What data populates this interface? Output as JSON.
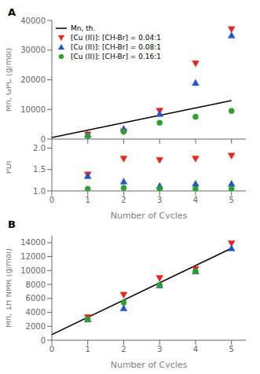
{
  "chart_data": [
    {
      "type": "scatter",
      "title": "A",
      "y_label": "Mn, GPC (g/mol)",
      "xlim": [
        0,
        5.4
      ],
      "xticks": [
        0,
        1,
        2,
        3,
        4,
        5
      ],
      "ylim": [
        0,
        40000
      ],
      "yticks": [
        0,
        10000,
        20000,
        30000,
        40000
      ],
      "tick_labels": "y",
      "legend": "upper left",
      "series": [
        {
          "name": "Mn, th.",
          "type": "line",
          "color": "#000000",
          "x": [
            0,
            5
          ],
          "values": [
            500,
            13000
          ]
        },
        {
          "name": "[Cu (II)]: [CH-Br] = 0.04:1",
          "type": "scatter",
          "marker": "triangle-down",
          "color": "#e8241a",
          "x": [
            1,
            2,
            3,
            4,
            5
          ],
          "values": [
            1500,
            2500,
            9500,
            25500,
            37000
          ]
        },
        {
          "name": "[Cu (II)]: [CH-Br] = 0.08:1",
          "type": "scatter",
          "marker": "triangle-up",
          "color": "#2255cc",
          "x": [
            1,
            2,
            3,
            4,
            5
          ],
          "values": [
            1500,
            3500,
            8500,
            19000,
            35000
          ]
        },
        {
          "name": "[Cu (II)]: [CH-Br] = 0.16:1",
          "type": "scatter",
          "marker": "circle",
          "color": "#2ca02c",
          "x": [
            1,
            2,
            3,
            4,
            5
          ],
          "values": [
            1000,
            2500,
            5500,
            7500,
            9500
          ]
        }
      ]
    },
    {
      "type": "scatter",
      "x_label": "Number of Cycles",
      "y_label": "PDI",
      "xlim": [
        0,
        5.4
      ],
      "xticks": [
        0,
        1,
        2,
        3,
        4,
        5
      ],
      "ylim": [
        1.0,
        2.1
      ],
      "yticks": [
        {
          "value": 1.0,
          "label": "1.0"
        },
        {
          "value": 1.5,
          "label": "1.5"
        },
        {
          "value": 2.0,
          "label": "2.0"
        }
      ],
      "series": [
        {
          "name": "[Cu (II)]: [CH-Br] = 0.04:1",
          "type": "scatter",
          "marker": "triangle-down",
          "color": "#e8241a",
          "x": [
            1,
            2,
            3,
            4,
            5
          ],
          "values": [
            1.38,
            1.75,
            1.72,
            1.75,
            1.82
          ]
        },
        {
          "name": "[Cu (II)]: [CH-Br] = 0.08:1",
          "type": "scatter",
          "marker": "triangle-up",
          "color": "#2255cc",
          "x": [
            1,
            2,
            3,
            4,
            5
          ],
          "values": [
            1.35,
            1.22,
            1.12,
            1.17,
            1.17
          ]
        },
        {
          "name": "[Cu (II)]: [CH-Br] = 0.16:1",
          "type": "scatter",
          "marker": "circle",
          "color": "#2ca02c",
          "x": [
            1,
            2,
            3,
            4,
            5
          ],
          "values": [
            1.05,
            1.07,
            1.05,
            1.05,
            1.05
          ]
        }
      ]
    },
    {
      "type": "scatter",
      "title": "B",
      "x_label": "Number of Cycles",
      "y_label": "Mn, 1H NMR (g/mol)",
      "xlim": [
        0,
        5.4
      ],
      "xticks": [
        0,
        1,
        2,
        3,
        4,
        5
      ],
      "ylim": [
        0,
        15000
      ],
      "yticks": [
        0,
        2000,
        4000,
        6000,
        8000,
        10000,
        12000,
        14000
      ],
      "series": [
        {
          "name": "Mn, th.",
          "type": "line",
          "color": "#000000",
          "x": [
            0,
            5
          ],
          "values": [
            800,
            13200
          ]
        },
        {
          "name": "[Cu (II)]: [CH-Br] = 0.04:1",
          "type": "scatter",
          "marker": "triangle-down",
          "color": "#e8241a",
          "x": [
            1,
            2,
            3,
            4,
            5
          ],
          "values": [
            3300,
            6500,
            8900,
            10200,
            13900
          ]
        },
        {
          "name": "[Cu (II)]: [CH-Br] = 0.08:1",
          "type": "scatter",
          "marker": "triangle-up",
          "color": "#2255cc",
          "x": [
            1,
            2,
            3,
            4,
            5
          ],
          "values": [
            3000,
            4600,
            7900,
            9900,
            13200
          ]
        },
        {
          "name": "[Cu (II)]: [CH-Br] = 0.16:1",
          "type": "scatter",
          "marker": "circle",
          "color": "#2ca02c",
          "x": [
            1,
            2,
            3,
            4
          ],
          "values": [
            3000,
            5400,
            7900,
            9900
          ]
        }
      ]
    }
  ]
}
